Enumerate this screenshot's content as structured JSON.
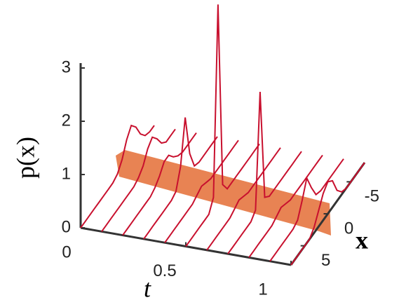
{
  "chart_data": {
    "type": "line3d",
    "zlabel": "p(x)",
    "tlabel": "t",
    "xlabel": "x",
    "tlim": [
      0,
      1
    ],
    "xlim": [
      -8,
      8
    ],
    "zlim": [
      0,
      3
    ],
    "tticks": [
      0,
      0.5,
      1
    ],
    "xticks": [
      -5,
      0,
      5
    ],
    "zticks": [
      0,
      1,
      2,
      3
    ],
    "x": [
      -8,
      -7,
      -6,
      -5,
      -4,
      -3,
      -2,
      -1,
      0,
      1,
      2,
      3,
      4,
      5,
      6,
      7,
      8
    ],
    "series": [
      {
        "t": 0,
        "color": "#c8102e",
        "values": [
          0,
          0,
          0.05,
          0.2,
          0.45,
          0.6,
          0.45,
          0.2,
          0.05,
          0,
          0,
          0,
          0,
          0,
          0,
          0,
          0
        ]
      },
      {
        "t": 0.1,
        "color": "#c8102e",
        "values": [
          0,
          0,
          0,
          0.1,
          0.3,
          0.45,
          0.35,
          0.15,
          0.05,
          0,
          0,
          0,
          0,
          0,
          0,
          0,
          0
        ]
      },
      {
        "t": 0.2,
        "color": "#c8102e",
        "values": [
          0,
          0,
          0,
          0,
          0.05,
          0.15,
          0.3,
          0.3,
          0.15,
          0.05,
          0,
          0,
          0,
          0,
          0,
          0,
          0
        ]
      },
      {
        "t": 0.3,
        "color": "#c8102e",
        "values": [
          0,
          0,
          0,
          0,
          0,
          0.05,
          0.4,
          1.2,
          0.4,
          0.05,
          0,
          0,
          0,
          0,
          0,
          0,
          0
        ]
      },
      {
        "t": 0.4,
        "color": "#c8102e",
        "values": [
          0,
          0,
          0,
          0,
          0,
          0,
          0,
          0.05,
          0.1,
          0.05,
          0,
          0,
          0,
          0,
          0,
          0,
          0
        ]
      },
      {
        "t": 0.5,
        "color": "#c8102e",
        "values": [
          0,
          0,
          0,
          0,
          0,
          0,
          0,
          0,
          0.2,
          3.7,
          0.2,
          0,
          0,
          0,
          0,
          0,
          0
        ]
      },
      {
        "t": 0.6,
        "color": "#c8102e",
        "values": [
          0,
          0,
          0,
          0,
          0,
          0,
          0,
          0,
          0.05,
          0.1,
          0.05,
          0,
          0,
          0,
          0,
          0,
          0
        ]
      },
      {
        "t": 0.7,
        "color": "#c8102e",
        "values": [
          0,
          0,
          0,
          0,
          0,
          0,
          0,
          0,
          0.1,
          2.2,
          0.1,
          0,
          0,
          0,
          0,
          0,
          0
        ]
      },
      {
        "t": 0.8,
        "color": "#c8102e",
        "values": [
          0,
          0,
          0,
          0,
          0,
          0,
          0,
          0,
          0.05,
          0.1,
          0.05,
          0,
          0,
          0,
          0,
          0,
          0
        ]
      },
      {
        "t": 0.9,
        "color": "#c8102e",
        "values": [
          0,
          0,
          0,
          0,
          0,
          0,
          0.05,
          0.3,
          0.6,
          0.3,
          0.05,
          0,
          0,
          0,
          0,
          0,
          0
        ]
      },
      {
        "t": 1,
        "color": "#c8102e",
        "values": [
          0,
          0,
          0,
          0,
          0,
          0.05,
          0.2,
          0.5,
          0.6,
          0.5,
          0.3,
          0.1,
          0,
          0,
          0,
          0,
          0
        ]
      }
    ]
  }
}
